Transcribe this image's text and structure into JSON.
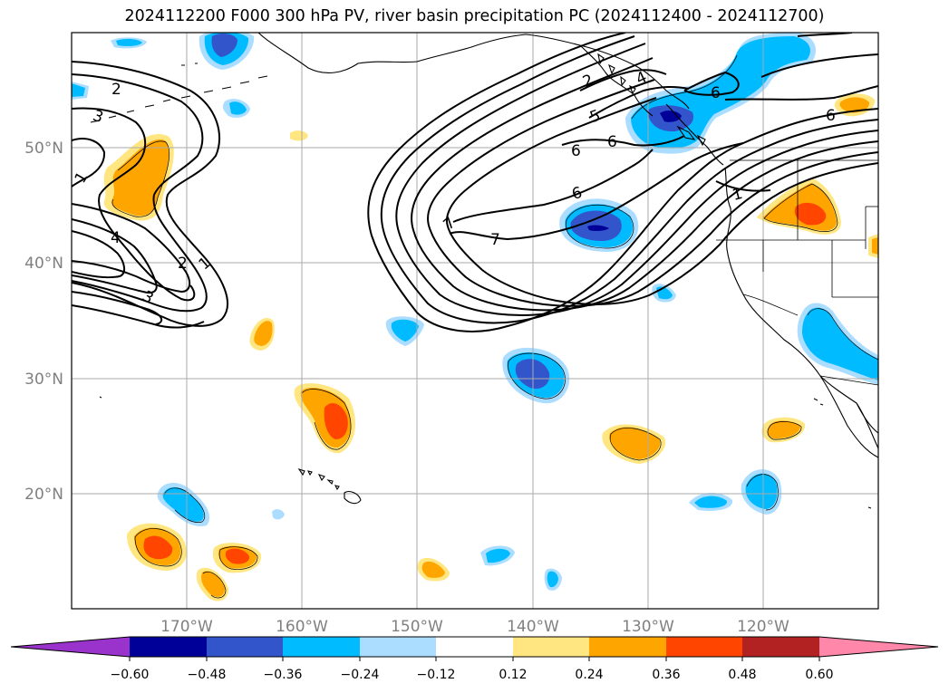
{
  "title": "2024112200 F000 300 hPa PV, river basin precipitation PC (2024112400 - 2024112700)",
  "map": {
    "lon_range": [
      -180,
      -110
    ],
    "lat_range": [
      10,
      60
    ],
    "lat_labels": [
      "20°N",
      "30°N",
      "40°N",
      "50°N"
    ],
    "lon_labels": [
      "170°W",
      "160°W",
      "150°W",
      "140°W",
      "130°W",
      "120°W"
    ],
    "grid": true
  },
  "pv_contour_labels": [
    "2",
    "3",
    "1",
    "4",
    "2",
    "1",
    "3",
    "7",
    "7",
    "6",
    "6",
    "6",
    "5",
    "4",
    "2",
    "6",
    "6",
    "1"
  ],
  "colorbar": {
    "ticks": [
      "−0.60",
      "−0.48",
      "−0.36",
      "−0.24",
      "−0.12",
      "0.12",
      "0.24",
      "0.36",
      "0.48",
      "0.60"
    ],
    "colors": [
      "#9933cc",
      "#000099",
      "#3355cc",
      "#00bbff",
      "#aaddff",
      "#ffffff",
      "#ffe680",
      "#ffa500",
      "#ff4500",
      "#b22222",
      "#ff88aa"
    ]
  }
}
